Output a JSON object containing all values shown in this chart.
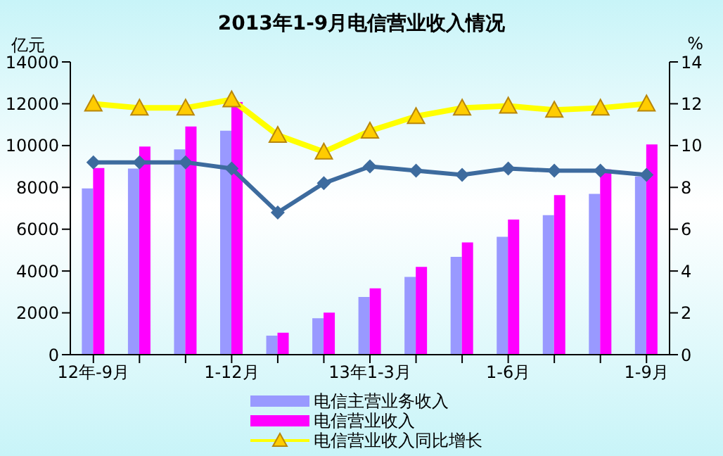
{
  "chart_data": {
    "type": "bar",
    "title": "2013年1-9月电信营业收入情况",
    "ylabel": "亿元",
    "y2label": "%",
    "categories": [
      "12年-9月",
      null,
      null,
      "1-12月",
      null,
      null,
      "13年1-3月",
      null,
      null,
      "1-6月",
      null,
      null,
      "1-9月"
    ],
    "series": [
      {
        "name": "电信主营业务收入",
        "color": "#9999ff",
        "values": [
          7950,
          8900,
          9820,
          10710,
          910,
          1740,
          2760,
          3720,
          4680,
          5640,
          6670,
          7690,
          8520
        ]
      },
      {
        "name": "电信营业收入",
        "color": "#ff00ff",
        "values": [
          8930,
          9950,
          10910,
          12080,
          1050,
          2010,
          3170,
          4200,
          5370,
          6460,
          7630,
          8860,
          10050
        ]
      },
      {
        "name": "电信营业收入同比增长",
        "type": "line",
        "axis": "y2",
        "marker": "triangle",
        "color": "#ffff00",
        "values": [
          12.0,
          11.8,
          11.8,
          12.2,
          10.5,
          9.7,
          10.7,
          11.4,
          11.8,
          11.9,
          11.7,
          11.8,
          12.0
        ]
      },
      {
        "type": "line",
        "axis": "y2",
        "marker": "diamond",
        "color": "#3d6b9e",
        "values": [
          9.2,
          9.2,
          9.2,
          8.9,
          6.8,
          8.2,
          9.0,
          8.8,
          8.6,
          8.9,
          8.8,
          8.8,
          8.6
        ]
      }
    ],
    "ylim": [
      0,
      14000
    ],
    "yticks": [
      0,
      2000,
      4000,
      6000,
      8000,
      10000,
      12000,
      14000
    ],
    "y2lim": [
      0,
      14
    ],
    "y2ticks": [
      0,
      2,
      4,
      6,
      8,
      10,
      12,
      14
    ],
    "grid": false,
    "legend": "bottom"
  }
}
